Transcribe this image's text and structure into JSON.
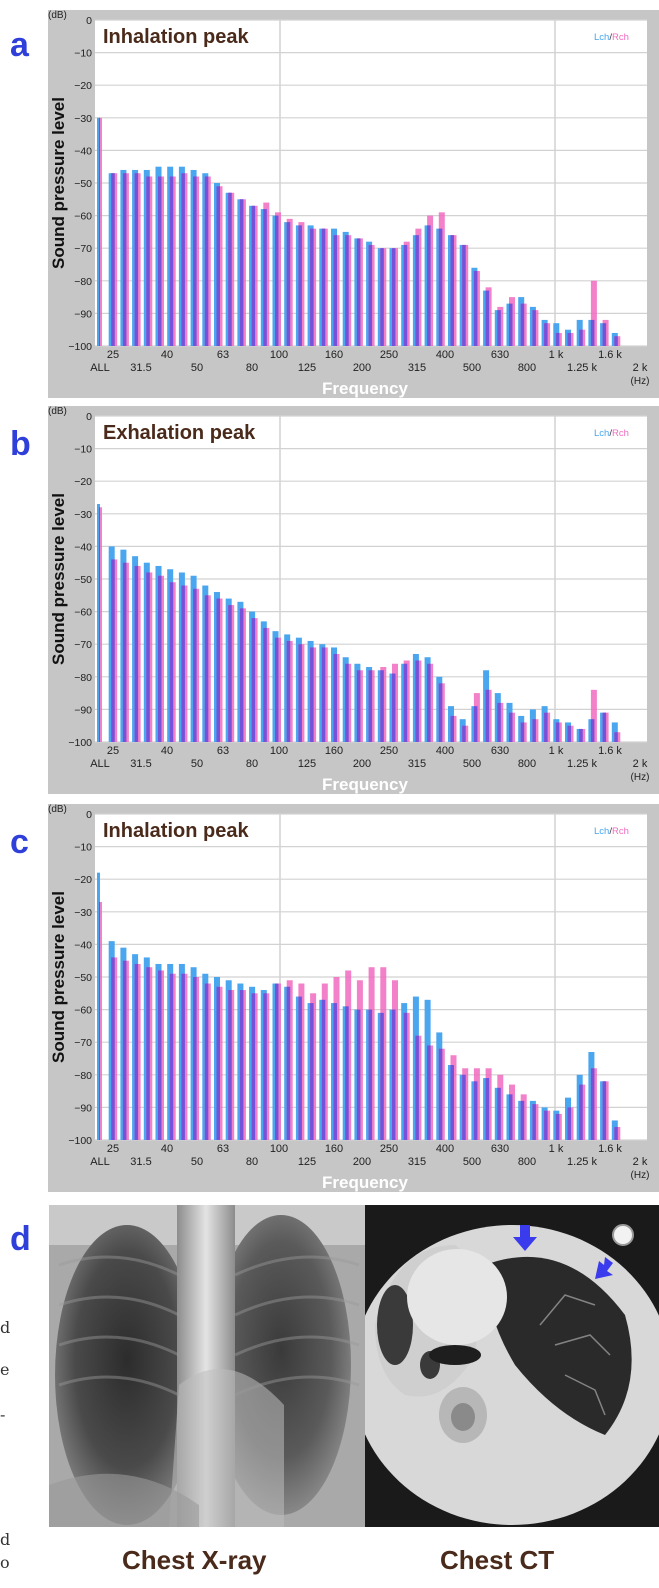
{
  "panels": [
    {
      "letter": "a",
      "chart_data": {
        "type": "bar",
        "title": "Inhalation peak",
        "xlabel": "Frequency",
        "ylabel": "Sound pressure level",
        "y_unit": "(dB)",
        "x_unit": "(Hz)",
        "ylim": [
          -100,
          0
        ],
        "y_ticks": [
          "0",
          "−10",
          "−20",
          "−30",
          "−40",
          "−50",
          "−60",
          "−70",
          "−80",
          "−90",
          "−100"
        ],
        "x_ticks_top": [
          "25",
          "40",
          "63",
          "100",
          "160",
          "250",
          "400",
          "630",
          "1 k",
          "1.6 k"
        ],
        "x_ticks_bottom": [
          "ALL",
          "31.5",
          "50",
          "80",
          "125",
          "200",
          "315",
          "500",
          "800",
          "1.25 k",
          "2 k"
        ],
        "legend": [
          "Lch",
          "/",
          "Rch"
        ],
        "legend_position": "top-right",
        "grid": true,
        "series": [
          {
            "name": "Lch",
            "values": [
              -30,
              -47,
              -46,
              -46,
              -46,
              -45,
              -45,
              -45,
              -46,
              -47,
              -50,
              -53,
              -55,
              -57,
              -58,
              -60,
              -62,
              -63,
              -63,
              -64,
              -64,
              -65,
              -67,
              -68,
              -70,
              -70,
              -69,
              -66,
              -63,
              -64,
              -66,
              -69,
              -76,
              -83,
              -89,
              -87,
              -85,
              -88,
              -92,
              -93,
              -95,
              -92,
              -92,
              -93,
              -96
            ]
          },
          {
            "name": "Rch",
            "values": [
              -30,
              -47,
              -47,
              -47,
              -48,
              -48,
              -48,
              -47,
              -48,
              -48,
              -51,
              -53,
              -55,
              -57,
              -56,
              -59,
              -61,
              -62,
              -64,
              -64,
              -66,
              -66,
              -67,
              -69,
              -70,
              -70,
              -68,
              -64,
              -60,
              -59,
              -66,
              -69,
              -77,
              -82,
              -88,
              -85,
              -87,
              -89,
              -93,
              -96,
              -96,
              -95,
              -80,
              -92,
              -97
            ]
          }
        ]
      }
    },
    {
      "letter": "b",
      "chart_data": {
        "type": "bar",
        "title": "Exhalation peak",
        "xlabel": "Frequency",
        "ylabel": "Sound pressure level",
        "y_unit": "(dB)",
        "x_unit": "(Hz)",
        "ylim": [
          -100,
          0
        ],
        "y_ticks": [
          "0",
          "−10",
          "−20",
          "−30",
          "−40",
          "−50",
          "−60",
          "−70",
          "−80",
          "−90",
          "−100"
        ],
        "x_ticks_top": [
          "25",
          "40",
          "63",
          "100",
          "160",
          "250",
          "400",
          "630",
          "1 k",
          "1.6 k"
        ],
        "x_ticks_bottom": [
          "ALL",
          "31.5",
          "50",
          "80",
          "125",
          "200",
          "315",
          "500",
          "800",
          "1.25 k",
          "2 k"
        ],
        "legend": [
          "Lch",
          "/",
          "Rch"
        ],
        "legend_position": "top-right",
        "grid": true,
        "series": [
          {
            "name": "Lch",
            "values": [
              -27,
              -40,
              -41,
              -43,
              -45,
              -46,
              -47,
              -48,
              -49,
              -52,
              -54,
              -56,
              -57,
              -60,
              -63,
              -66,
              -67,
              -68,
              -69,
              -70,
              -71,
              -74,
              -76,
              -77,
              -78,
              -79,
              -76,
              -73,
              -74,
              -80,
              -89,
              -93,
              -89,
              -78,
              -85,
              -88,
              -92,
              -90,
              -89,
              -93,
              -94,
              -96,
              -93,
              -91,
              -94
            ]
          },
          {
            "name": "Rch",
            "values": [
              -28,
              -44,
              -45,
              -46,
              -48,
              -49,
              -51,
              -52,
              -53,
              -55,
              -56,
              -58,
              -59,
              -62,
              -65,
              -68,
              -69,
              -70,
              -71,
              -71,
              -73,
              -76,
              -78,
              -78,
              -77,
              -76,
              -75,
              -75,
              -76,
              -82,
              -92,
              -95,
              -85,
              -84,
              -88,
              -91,
              -94,
              -93,
              -91,
              -94,
              -95,
              -96,
              -84,
              -91,
              -97
            ]
          }
        ]
      }
    },
    {
      "letter": "c",
      "chart_data": {
        "type": "bar",
        "title": "Inhalation peak",
        "xlabel": "Frequency",
        "ylabel": "Sound pressure level",
        "y_unit": "(dB)",
        "x_unit": "(Hz)",
        "ylim": [
          -100,
          0
        ],
        "y_ticks": [
          "0",
          "−10",
          "−20",
          "−30",
          "−40",
          "−50",
          "−60",
          "−70",
          "−80",
          "−90",
          "−100"
        ],
        "x_ticks_top": [
          "25",
          "40",
          "63",
          "100",
          "160",
          "250",
          "400",
          "630",
          "1 k",
          "1.6 k"
        ],
        "x_ticks_bottom": [
          "ALL",
          "31.5",
          "50",
          "80",
          "125",
          "200",
          "315",
          "500",
          "800",
          "1.25 k",
          "2 k"
        ],
        "legend": [
          "Lch",
          "/",
          "Rch"
        ],
        "legend_position": "top-right",
        "grid": true,
        "series": [
          {
            "name": "Lch",
            "values": [
              -18,
              -39,
              -41,
              -43,
              -44,
              -46,
              -46,
              -46,
              -47,
              -49,
              -50,
              -51,
              -52,
              -53,
              -54,
              -52,
              -53,
              -56,
              -58,
              -57,
              -58,
              -59,
              -60,
              -60,
              -61,
              -60,
              -58,
              -56,
              -57,
              -67,
              -77,
              -80,
              -82,
              -81,
              -84,
              -86,
              -88,
              -88,
              -90,
              -91,
              -87,
              -80,
              -73,
              -82,
              -94
            ]
          },
          {
            "name": "Rch",
            "values": [
              -27,
              -44,
              -45,
              -46,
              -47,
              -48,
              -49,
              -49,
              -50,
              -52,
              -53,
              -54,
              -54,
              -55,
              -55,
              -52,
              -51,
              -52,
              -55,
              -52,
              -50,
              -48,
              -51,
              -47,
              -47,
              -51,
              -61,
              -68,
              -71,
              -72,
              -74,
              -78,
              -78,
              -78,
              -80,
              -83,
              -86,
              -89,
              -91,
              -92,
              -90,
              -83,
              -78,
              -82,
              -96
            ]
          }
        ]
      }
    }
  ],
  "panel_d": {
    "letter": "d",
    "xray_caption": "Chest X-ray",
    "ct_caption": "Chest CT"
  },
  "colors": {
    "lch": "#4aa6ee",
    "rch": "#f06bbf",
    "overlap": "#6a4fd8",
    "title_text": "#4a2a1a",
    "frame": "#c6c6c6",
    "letters": "#2f3fd9",
    "arrows": "#3b3bee"
  }
}
